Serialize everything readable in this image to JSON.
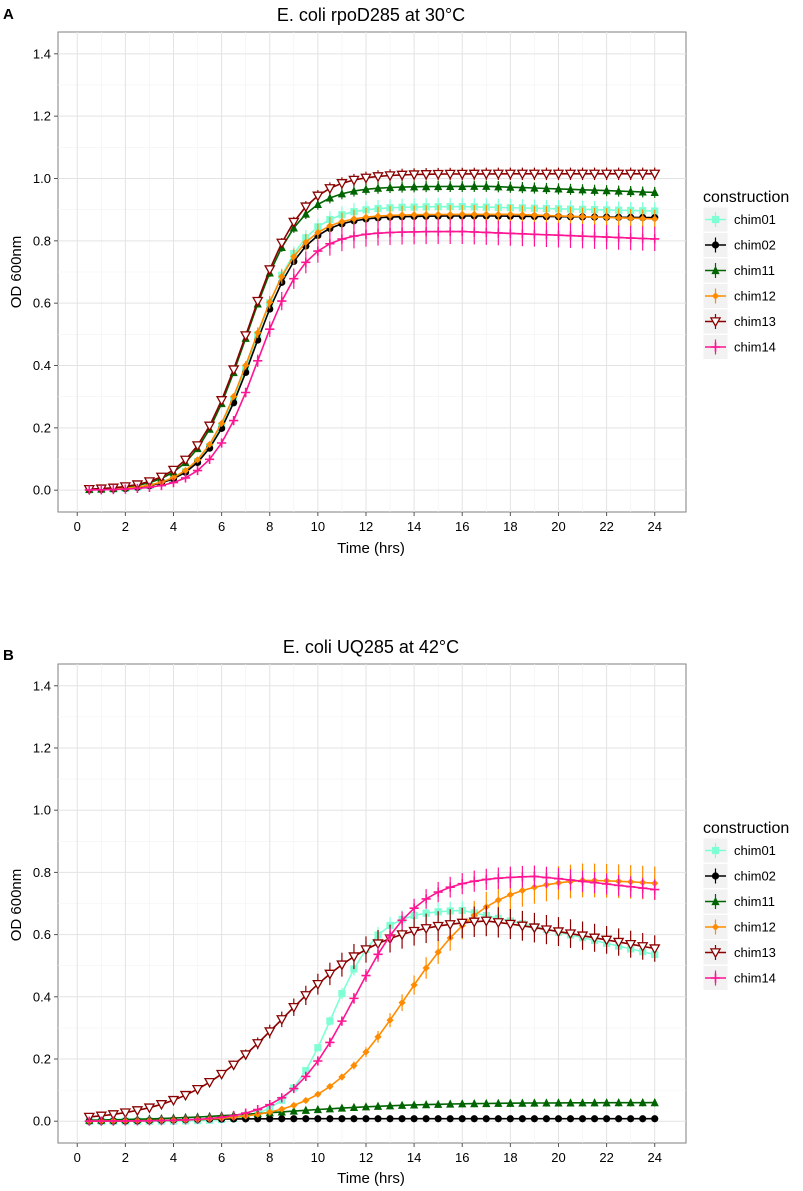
{
  "figure": {
    "panels": [
      {
        "letter": "A"
      },
      {
        "letter": "B"
      }
    ]
  },
  "chart_data": [
    {
      "type": "line",
      "panel": "A",
      "title": "E. coli rpoD285 at 30°C",
      "xlabel": "Time (hrs)",
      "ylabel": "OD 600nm",
      "xlim": [
        -0.8,
        25.3
      ],
      "ylim": [
        -0.07,
        1.47
      ],
      "xticks": [
        0,
        2,
        4,
        6,
        8,
        10,
        12,
        14,
        16,
        18,
        20,
        22,
        24
      ],
      "yticks": [
        0.0,
        0.2,
        0.4,
        0.6,
        0.8,
        1.0,
        1.2,
        1.4
      ],
      "ytick_labels": [
        "0.0",
        "0.2",
        "0.4",
        "0.6",
        "0.8",
        "1.0",
        "1.2",
        "1.4"
      ],
      "legend_title": "construction",
      "legend_position": "right",
      "series": [
        {
          "name": "chim01",
          "color": "#7fffd4",
          "marker": "square",
          "curve": {
            "type": "logistic",
            "K": 0.91,
            "r": 0.95,
            "t0": 7.3,
            "base": 0.0,
            "decay": 0.0018,
            "decayStart": 16
          },
          "err": 0.028
        },
        {
          "name": "chim02",
          "color": "#000000",
          "marker": "circle",
          "curve": {
            "type": "logistic",
            "K": 0.88,
            "r": 0.95,
            "t0": 7.3,
            "base": 0.0,
            "decay": 0.0008,
            "decayStart": 17
          },
          "err": 0.01
        },
        {
          "name": "chim11",
          "color": "#006400",
          "marker": "triangle",
          "curve": {
            "type": "logistic",
            "K": 0.975,
            "r": 0.92,
            "t0": 7.0,
            "base": 0.0,
            "decay": 0.0028,
            "decayStart": 17
          },
          "err": 0.018
        },
        {
          "name": "chim12",
          "color": "#ff8c00",
          "marker": "diamond",
          "curve": {
            "type": "logistic",
            "K": 0.885,
            "r": 0.95,
            "t0": 7.2,
            "base": 0.0,
            "decay": 0.0025,
            "decayStart": 18
          },
          "err": 0.03
        },
        {
          "name": "chim13",
          "color": "#8b0000",
          "marker": "triangle-down",
          "curve": {
            "type": "logistic",
            "K": 1.015,
            "r": 0.88,
            "t0": 7.05,
            "base": 0.0,
            "decay": 0.0,
            "decayStart": 30
          },
          "err": 0.02
        },
        {
          "name": "chim14",
          "color": "#ff1493",
          "marker": "plus",
          "curve": {
            "type": "logistic",
            "K": 0.83,
            "r": 1.0,
            "t0": 7.5,
            "base": 0.0,
            "decay": 0.003,
            "decayStart": 16
          },
          "err": 0.04
        }
      ]
    },
    {
      "type": "line",
      "panel": "B",
      "title": "E. coli UQ285 at 42°C",
      "xlabel": "Time (hrs)",
      "ylabel": "OD 600nm",
      "xlim": [
        -0.8,
        25.3
      ],
      "ylim": [
        -0.07,
        1.47
      ],
      "xticks": [
        0,
        2,
        4,
        6,
        8,
        10,
        12,
        14,
        16,
        18,
        20,
        22,
        24
      ],
      "yticks": [
        0.0,
        0.2,
        0.4,
        0.6,
        0.8,
        1.0,
        1.2,
        1.4
      ],
      "ytick_labels": [
        "0.0",
        "0.2",
        "0.4",
        "0.6",
        "0.8",
        "1.0",
        "1.2",
        "1.4"
      ],
      "legend_title": "construction",
      "legend_position": "right",
      "series": [
        {
          "name": "chim01",
          "color": "#7fffd4",
          "marker": "square",
          "curve": {
            "type": "logistic",
            "K": 0.68,
            "r": 1.05,
            "t0": 10.6,
            "base": 0.0,
            "decay": 0.018,
            "decayStart": 16
          },
          "err": 0.03
        },
        {
          "name": "chim02",
          "color": "#000000",
          "marker": "circle",
          "curve": {
            "type": "logistic",
            "K": 0.008,
            "r": 1.0,
            "t0": 4.0,
            "base": 0.0,
            "decay": 0.0,
            "decayStart": 30
          },
          "err": 0.002
        },
        {
          "name": "chim11",
          "color": "#006400",
          "marker": "triangle",
          "curve": {
            "type": "logistic",
            "K": 0.06,
            "r": 0.35,
            "t0": 8.5,
            "base": 0.0,
            "decay": 0.0,
            "decayStart": 30
          },
          "err": 0.012
        },
        {
          "name": "chim12",
          "color": "#ff8c00",
          "marker": "diamond",
          "curve": {
            "type": "logistic",
            "K": 0.785,
            "r": 0.58,
            "t0": 13.6,
            "base": 0.0,
            "decay": 0.006,
            "decayStart": 21
          },
          "err": 0.055
        },
        {
          "name": "chim13",
          "color": "#8b0000",
          "marker": "triangle-down",
          "curve": {
            "type": "logistic",
            "K": 0.655,
            "r": 0.48,
            "t0": 8.5,
            "base": 0.0,
            "decay": 0.0142,
            "decayStart": 17
          },
          "err": 0.05
        },
        {
          "name": "chim14",
          "color": "#ff1493",
          "marker": "plus",
          "curve": {
            "type": "logistic",
            "K": 0.79,
            "r": 0.75,
            "t0": 11.5,
            "base": 0.0,
            "decay": 0.009,
            "decayStart": 19
          },
          "err": 0.035
        }
      ]
    }
  ]
}
